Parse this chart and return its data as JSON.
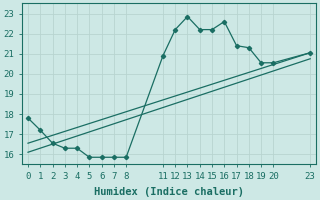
{
  "bg_color": "#cde8e5",
  "grid_color": "#b8d4d0",
  "line_color": "#1a6e63",
  "xlabel": "Humidex (Indice chaleur)",
  "xlim": [
    -0.5,
    23.5
  ],
  "ylim": [
    15.5,
    23.5
  ],
  "yticks": [
    16,
    17,
    18,
    19,
    20,
    21,
    22,
    23
  ],
  "xticks": [
    0,
    1,
    2,
    3,
    4,
    5,
    6,
    7,
    8,
    11,
    12,
    13,
    14,
    15,
    16,
    17,
    18,
    19,
    20,
    23
  ],
  "line1_x": [
    0,
    1,
    2,
    3,
    4,
    5,
    6,
    7,
    8,
    11,
    12,
    13,
    14,
    15,
    16,
    17,
    18,
    19,
    20,
    23
  ],
  "line1_y": [
    17.8,
    17.2,
    16.55,
    16.3,
    16.3,
    15.85,
    15.85,
    15.85,
    15.85,
    20.9,
    22.2,
    22.85,
    22.2,
    22.2,
    22.6,
    21.4,
    21.3,
    20.55,
    20.55,
    21.05
  ],
  "line2_x": [
    0,
    23
  ],
  "line2_y": [
    16.55,
    21.05
  ],
  "line3_x": [
    0,
    23
  ],
  "line3_y": [
    16.1,
    20.75
  ],
  "marker": "D",
  "marker_size": 2.2,
  "linewidth": 0.9,
  "xlabel_fontsize": 7.5,
  "tick_fontsize": 6.5
}
